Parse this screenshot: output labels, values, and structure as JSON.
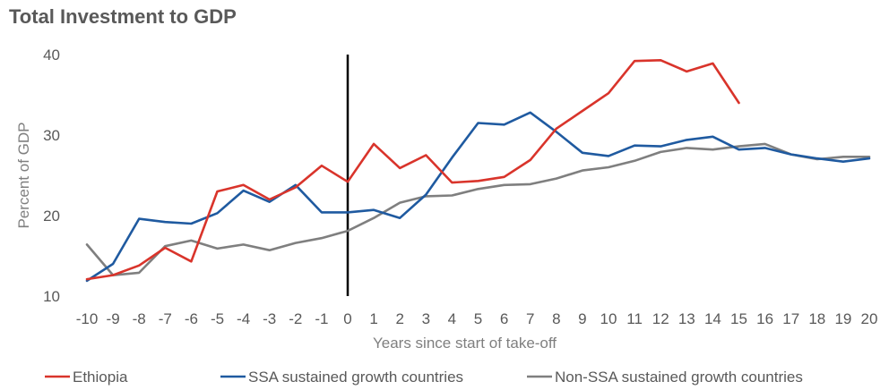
{
  "chart_data": {
    "type": "line",
    "title": "Total Investment to GDP",
    "xlabel": "Years since start of take-off",
    "ylabel": "Percent of GDP",
    "x": [
      -10,
      -9,
      -8,
      -7,
      -6,
      -5,
      -4,
      -3,
      -2,
      -1,
      0,
      1,
      2,
      3,
      4,
      5,
      6,
      7,
      8,
      9,
      10,
      11,
      12,
      13,
      14,
      15,
      16,
      17,
      18,
      19,
      20
    ],
    "xlim": [
      -10,
      20
    ],
    "ylim": [
      10,
      40
    ],
    "yticks": [
      10,
      20,
      30,
      40
    ],
    "vline_x": 0,
    "grid": false,
    "legend_position": "bottom",
    "series": [
      {
        "name": "Ethiopia",
        "color": "#d9342b",
        "values": [
          12.1,
          12.6,
          13.8,
          16.0,
          14.3,
          23.0,
          23.8,
          22.0,
          23.5,
          26.2,
          24.2,
          28.9,
          25.9,
          27.5,
          24.1,
          24.3,
          24.8,
          26.9,
          30.8,
          33.0,
          35.2,
          39.2,
          39.3,
          37.9,
          38.9,
          34.0,
          null,
          null,
          null,
          null,
          null
        ]
      },
      {
        "name": "SSA sustained growth countries",
        "color": "#1f5aa0",
        "values": [
          11.9,
          14.0,
          19.6,
          19.2,
          19.0,
          20.3,
          23.1,
          21.7,
          23.8,
          20.4,
          20.4,
          20.7,
          19.7,
          22.6,
          27.2,
          31.5,
          31.3,
          32.8,
          30.4,
          27.8,
          27.4,
          28.7,
          28.6,
          29.4,
          29.8,
          28.2,
          28.4,
          27.6,
          27.1,
          26.7,
          27.1
        ]
      },
      {
        "name": "Non-SSA sustained growth countries",
        "color": "#7f7f7f",
        "values": [
          16.4,
          12.6,
          12.9,
          16.2,
          16.9,
          15.9,
          16.4,
          15.7,
          16.6,
          17.2,
          18.1,
          19.7,
          21.6,
          22.4,
          22.5,
          23.3,
          23.8,
          23.9,
          24.6,
          25.6,
          26.0,
          26.8,
          27.9,
          28.4,
          28.2,
          28.6,
          28.9,
          27.6,
          27.0,
          27.3,
          27.3
        ]
      }
    ]
  }
}
